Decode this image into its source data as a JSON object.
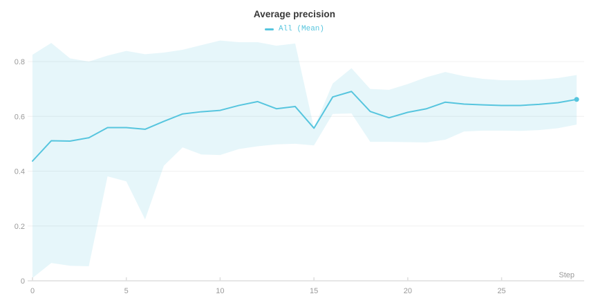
{
  "header": {
    "title": "Average precision"
  },
  "legend": {
    "items": [
      {
        "label": "All (Mean)",
        "color": "#56c5de"
      }
    ]
  },
  "chart_data": {
    "type": "line",
    "title": "Average precision",
    "xlabel": "Step",
    "ylabel": "",
    "legend_position": "top-center",
    "grid": "horizontal-only",
    "xlim": [
      0,
      29.4
    ],
    "ylim": [
      0,
      0.886
    ],
    "x_ticks": [
      0,
      5,
      10,
      15,
      20,
      25
    ],
    "y_ticks": [
      0,
      0.2,
      0.4,
      0.6,
      0.8
    ],
    "y_tick_labels": [
      "0",
      "0.2",
      "0.4",
      "0.6",
      "0.8"
    ],
    "x": [
      0,
      1,
      2,
      3,
      4,
      5,
      6,
      7,
      8,
      9,
      10,
      11,
      12,
      13,
      14,
      15,
      16,
      17,
      18,
      19,
      20,
      21,
      22,
      23,
      24,
      25,
      26,
      27,
      28,
      29
    ],
    "series": [
      {
        "name": "All (Mean)",
        "values": [
          0.437,
          0.511,
          0.51,
          0.522,
          0.559,
          0.559,
          0.553,
          0.582,
          0.609,
          0.617,
          0.622,
          0.64,
          0.654,
          0.628,
          0.636,
          0.557,
          0.671,
          0.691,
          0.618,
          0.595,
          0.615,
          0.628,
          0.652,
          0.645,
          0.642,
          0.64,
          0.64,
          0.644,
          0.65,
          0.662
        ]
      }
    ],
    "band": {
      "name": "min-max range",
      "upper": [
        0.825,
        0.868,
        0.812,
        0.8,
        0.822,
        0.839,
        0.827,
        0.833,
        0.843,
        0.86,
        0.877,
        0.871,
        0.871,
        0.858,
        0.866,
        0.558,
        0.72,
        0.776,
        0.7,
        0.697,
        0.718,
        0.743,
        0.762,
        0.747,
        0.737,
        0.732,
        0.732,
        0.734,
        0.74,
        0.751
      ],
      "lower": [
        0.01,
        0.065,
        0.055,
        0.053,
        0.381,
        0.363,
        0.224,
        0.42,
        0.487,
        0.461,
        0.459,
        0.481,
        0.491,
        0.498,
        0.5,
        0.494,
        0.609,
        0.611,
        0.507,
        0.507,
        0.506,
        0.505,
        0.515,
        0.545,
        0.548,
        0.548,
        0.547,
        0.55,
        0.557,
        0.57
      ]
    },
    "end_marker_on_last_point": true,
    "colors": {
      "line": "#56c5de",
      "band": "rgba(86,197,222,0.15)",
      "grid": "#f0f0f0",
      "axis": "#dddddd",
      "tick_text": "#999999",
      "title_text": "#363636"
    }
  }
}
